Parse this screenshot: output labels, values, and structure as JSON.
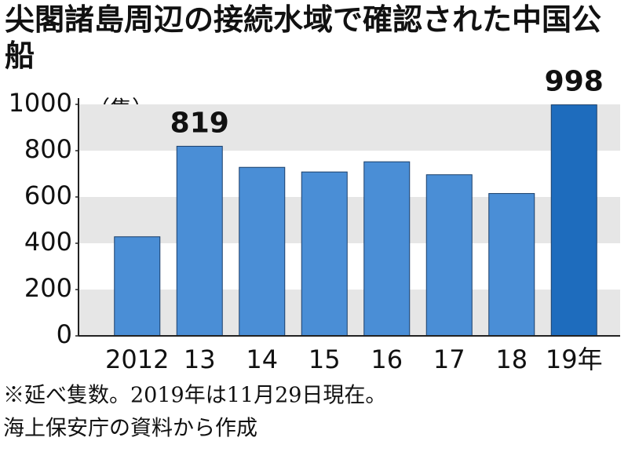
{
  "chart_data": {
    "type": "bar",
    "title": "尖閣諸島周辺の接続水域で確認された中国公船",
    "unit_label": "（隻）",
    "categories": [
      "2012",
      "13",
      "14",
      "15",
      "16",
      "17",
      "18",
      "19年"
    ],
    "values": [
      428,
      819,
      728,
      708,
      752,
      696,
      615,
      998
    ],
    "value_labels": [
      null,
      "819",
      null,
      null,
      null,
      null,
      null,
      "998"
    ],
    "colors": [
      "#4a8ed6",
      "#4a8ed6",
      "#4a8ed6",
      "#4a8ed6",
      "#4a8ed6",
      "#4a8ed6",
      "#4a8ed6",
      "#1e6cbd"
    ],
    "ylim": [
      0,
      1000
    ],
    "yticks": [
      0,
      200,
      400,
      600,
      800,
      1000
    ],
    "grid": "bands",
    "notes": [
      "※延べ隻数。2019年は11月29日現在。",
      "海上保安庁の資料から作成"
    ]
  }
}
